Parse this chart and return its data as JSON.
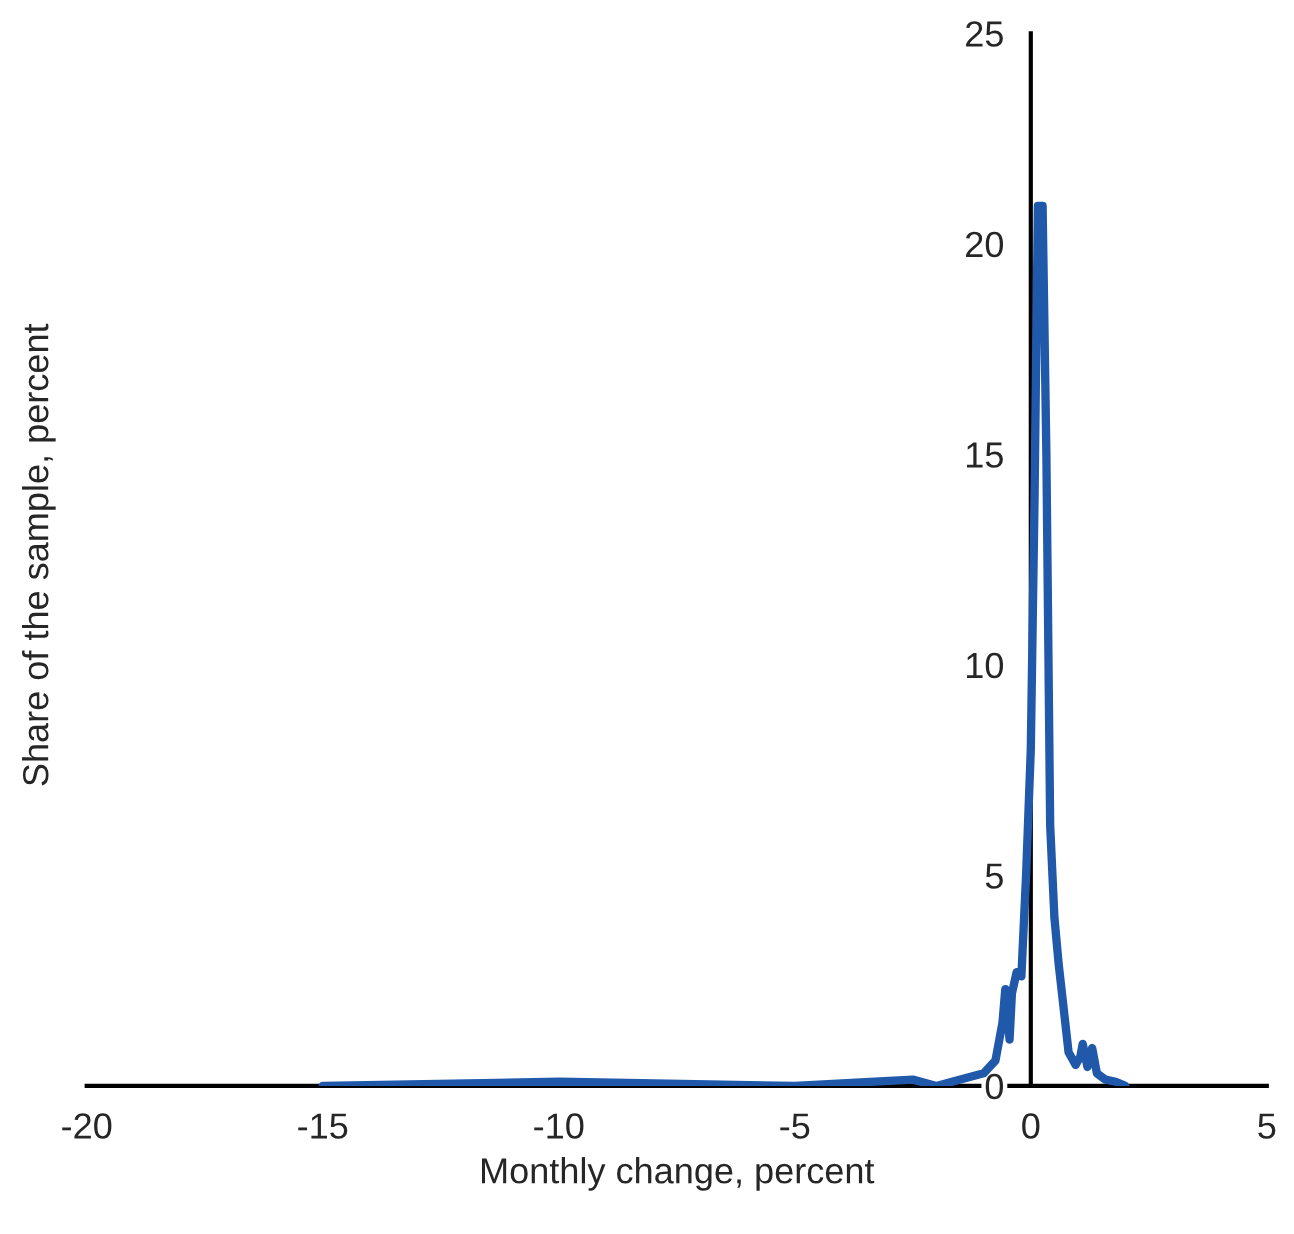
{
  "chart_data": {
    "type": "line",
    "xlabel": "Monthly change, percent",
    "ylabel": "Share of the sample, percent",
    "x": [
      -15,
      -10,
      -5,
      -2.5,
      -2,
      -1,
      -0.75,
      -0.6,
      -0.54,
      -0.45,
      -0.4,
      -0.3,
      -0.2,
      -0.1,
      0,
      0.08,
      0.15,
      0.25,
      0.33,
      0.41,
      0.5,
      0.59,
      0.7,
      0.8,
      0.95,
      1.05,
      1.1,
      1.2,
      1.3,
      1.4,
      1.58,
      1.8,
      2
    ],
    "series": [
      {
        "color": "#2159aa",
        "values": [
          0,
          0.1,
          0,
          0.15,
          0,
          0.3,
          0.6,
          1.5,
          2.3,
          1.1,
          2.2,
          2.7,
          2.6,
          5,
          8,
          14,
          20.9,
          20.9,
          15,
          6.2,
          4,
          2.9,
          1.8,
          0.8,
          0.5,
          0.7,
          1.0,
          0.45,
          0.9,
          0.3,
          0.15,
          0.1,
          0
        ]
      }
    ],
    "xlim": [
      -20,
      5
    ],
    "ylim": [
      0,
      25
    ],
    "xticks": [
      -20,
      -15,
      -10,
      -5,
      0,
      5
    ],
    "yticks": [
      0,
      5,
      10,
      15,
      20,
      25
    ],
    "grid": false
  }
}
